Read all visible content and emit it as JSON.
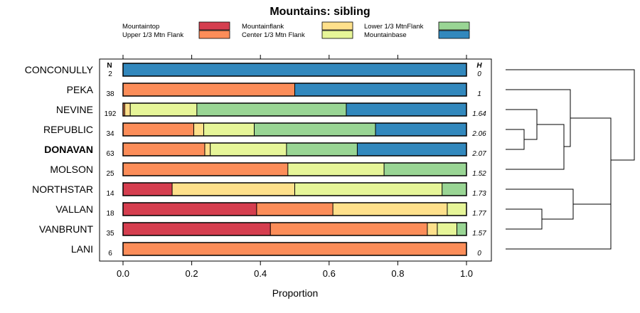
{
  "chart_data": {
    "type": "bar",
    "stacked": true,
    "orientation": "horizontal",
    "title": "Mountains: sibling",
    "xlabel": "Proportion",
    "xlim": [
      0,
      1
    ],
    "xticks": [
      "0.0",
      "0.2",
      "0.4",
      "0.6",
      "0.8",
      "1.0"
    ],
    "n_header": "N",
    "h_header": "H",
    "legend": [
      {
        "name": "Mountaintop",
        "color": "#d53e4f"
      },
      {
        "name": "Upper 1/3 Mtn Flank",
        "color": "#fc8d59"
      },
      {
        "name": "Mountainflank",
        "color": "#fee08b"
      },
      {
        "name": "Center 1/3 Mtn Flank",
        "color": "#e6f598"
      },
      {
        "name": "Lower 1/3 MtnFlank",
        "color": "#99d594"
      },
      {
        "name": "Mountainbase",
        "color": "#3288bd"
      }
    ],
    "rows": [
      {
        "name": "CONCONULLY",
        "n": "2",
        "h": "0",
        "bold": false,
        "values": [
          0,
          0,
          0,
          0,
          0,
          1.0
        ]
      },
      {
        "name": "PEKA",
        "n": "38",
        "h": "1",
        "bold": false,
        "values": [
          0,
          0.5,
          0,
          0,
          0,
          0.5
        ]
      },
      {
        "name": "NEVINE",
        "n": "192",
        "h": "1.64",
        "bold": false,
        "values": [
          0,
          0.005,
          0.016,
          0.194,
          0.435,
          0.35
        ]
      },
      {
        "name": "REPUBLIC",
        "n": "34",
        "h": "2.06",
        "bold": false,
        "values": [
          0,
          0.206,
          0.029,
          0.147,
          0.353,
          0.265
        ]
      },
      {
        "name": "DONAVAN",
        "n": "63",
        "h": "2.07",
        "bold": true,
        "values": [
          0,
          0.238,
          0.016,
          0.222,
          0.206,
          0.318
        ]
      },
      {
        "name": "MOLSON",
        "n": "25",
        "h": "1.52",
        "bold": false,
        "values": [
          0,
          0.48,
          0,
          0.28,
          0.24,
          0
        ]
      },
      {
        "name": "NORTHSTAR",
        "n": "14",
        "h": "1.73",
        "bold": false,
        "values": [
          0.143,
          0,
          0.357,
          0.429,
          0.071,
          0
        ]
      },
      {
        "name": "VALLAN",
        "n": "18",
        "h": "1.77",
        "bold": false,
        "values": [
          0.389,
          0.222,
          0.333,
          0.056,
          0,
          0
        ]
      },
      {
        "name": "VANBRUNT",
        "n": "35",
        "h": "1.57",
        "bold": false,
        "values": [
          0.429,
          0.457,
          0.029,
          0.057,
          0.028,
          0
        ]
      },
      {
        "name": "LANI",
        "n": "6",
        "h": "0",
        "bold": false,
        "values": [
          0,
          1.0,
          0,
          0,
          0,
          0
        ]
      }
    ],
    "dendrogram": {
      "description": "hierarchical clustering of rows",
      "merges": [
        {
          "a": "REPUBLIC",
          "b": "DONAVAN",
          "height": 0.07
        },
        {
          "a": "cluster:REPUBLIC+DONAVAN",
          "b": "NEVINE",
          "height": 0.14
        },
        {
          "a": "VALLAN",
          "b": "VANBRUNT",
          "height": 0.17
        },
        {
          "a": "cluster:NEVINE+REPUBLIC+DONAVAN",
          "b": "MOLSON",
          "height": 0.26
        },
        {
          "a": "cluster:VALLAN+VANBRUNT",
          "b": "NORTHSTAR",
          "height": 0.31
        },
        {
          "a": "PEKA",
          "b": "cluster:NEVINE+REPUBLIC+DONAVAN+MOLSON",
          "height": 0.29
        },
        {
          "a": "cluster:NORTHSTAR+VALLAN+VANBRUNT",
          "b": "LANI",
          "height": 0.47
        },
        {
          "a": "cluster:PEKA+NEVINE+REPUBLIC+DONAVAN+MOLSON",
          "b": "cluster:NORTHSTAR+VALLAN+VANBRUNT+LANI",
          "height": 0.5
        },
        {
          "a": "CONCONULLY",
          "b": "cluster:rest",
          "height": 0.6
        }
      ]
    }
  }
}
